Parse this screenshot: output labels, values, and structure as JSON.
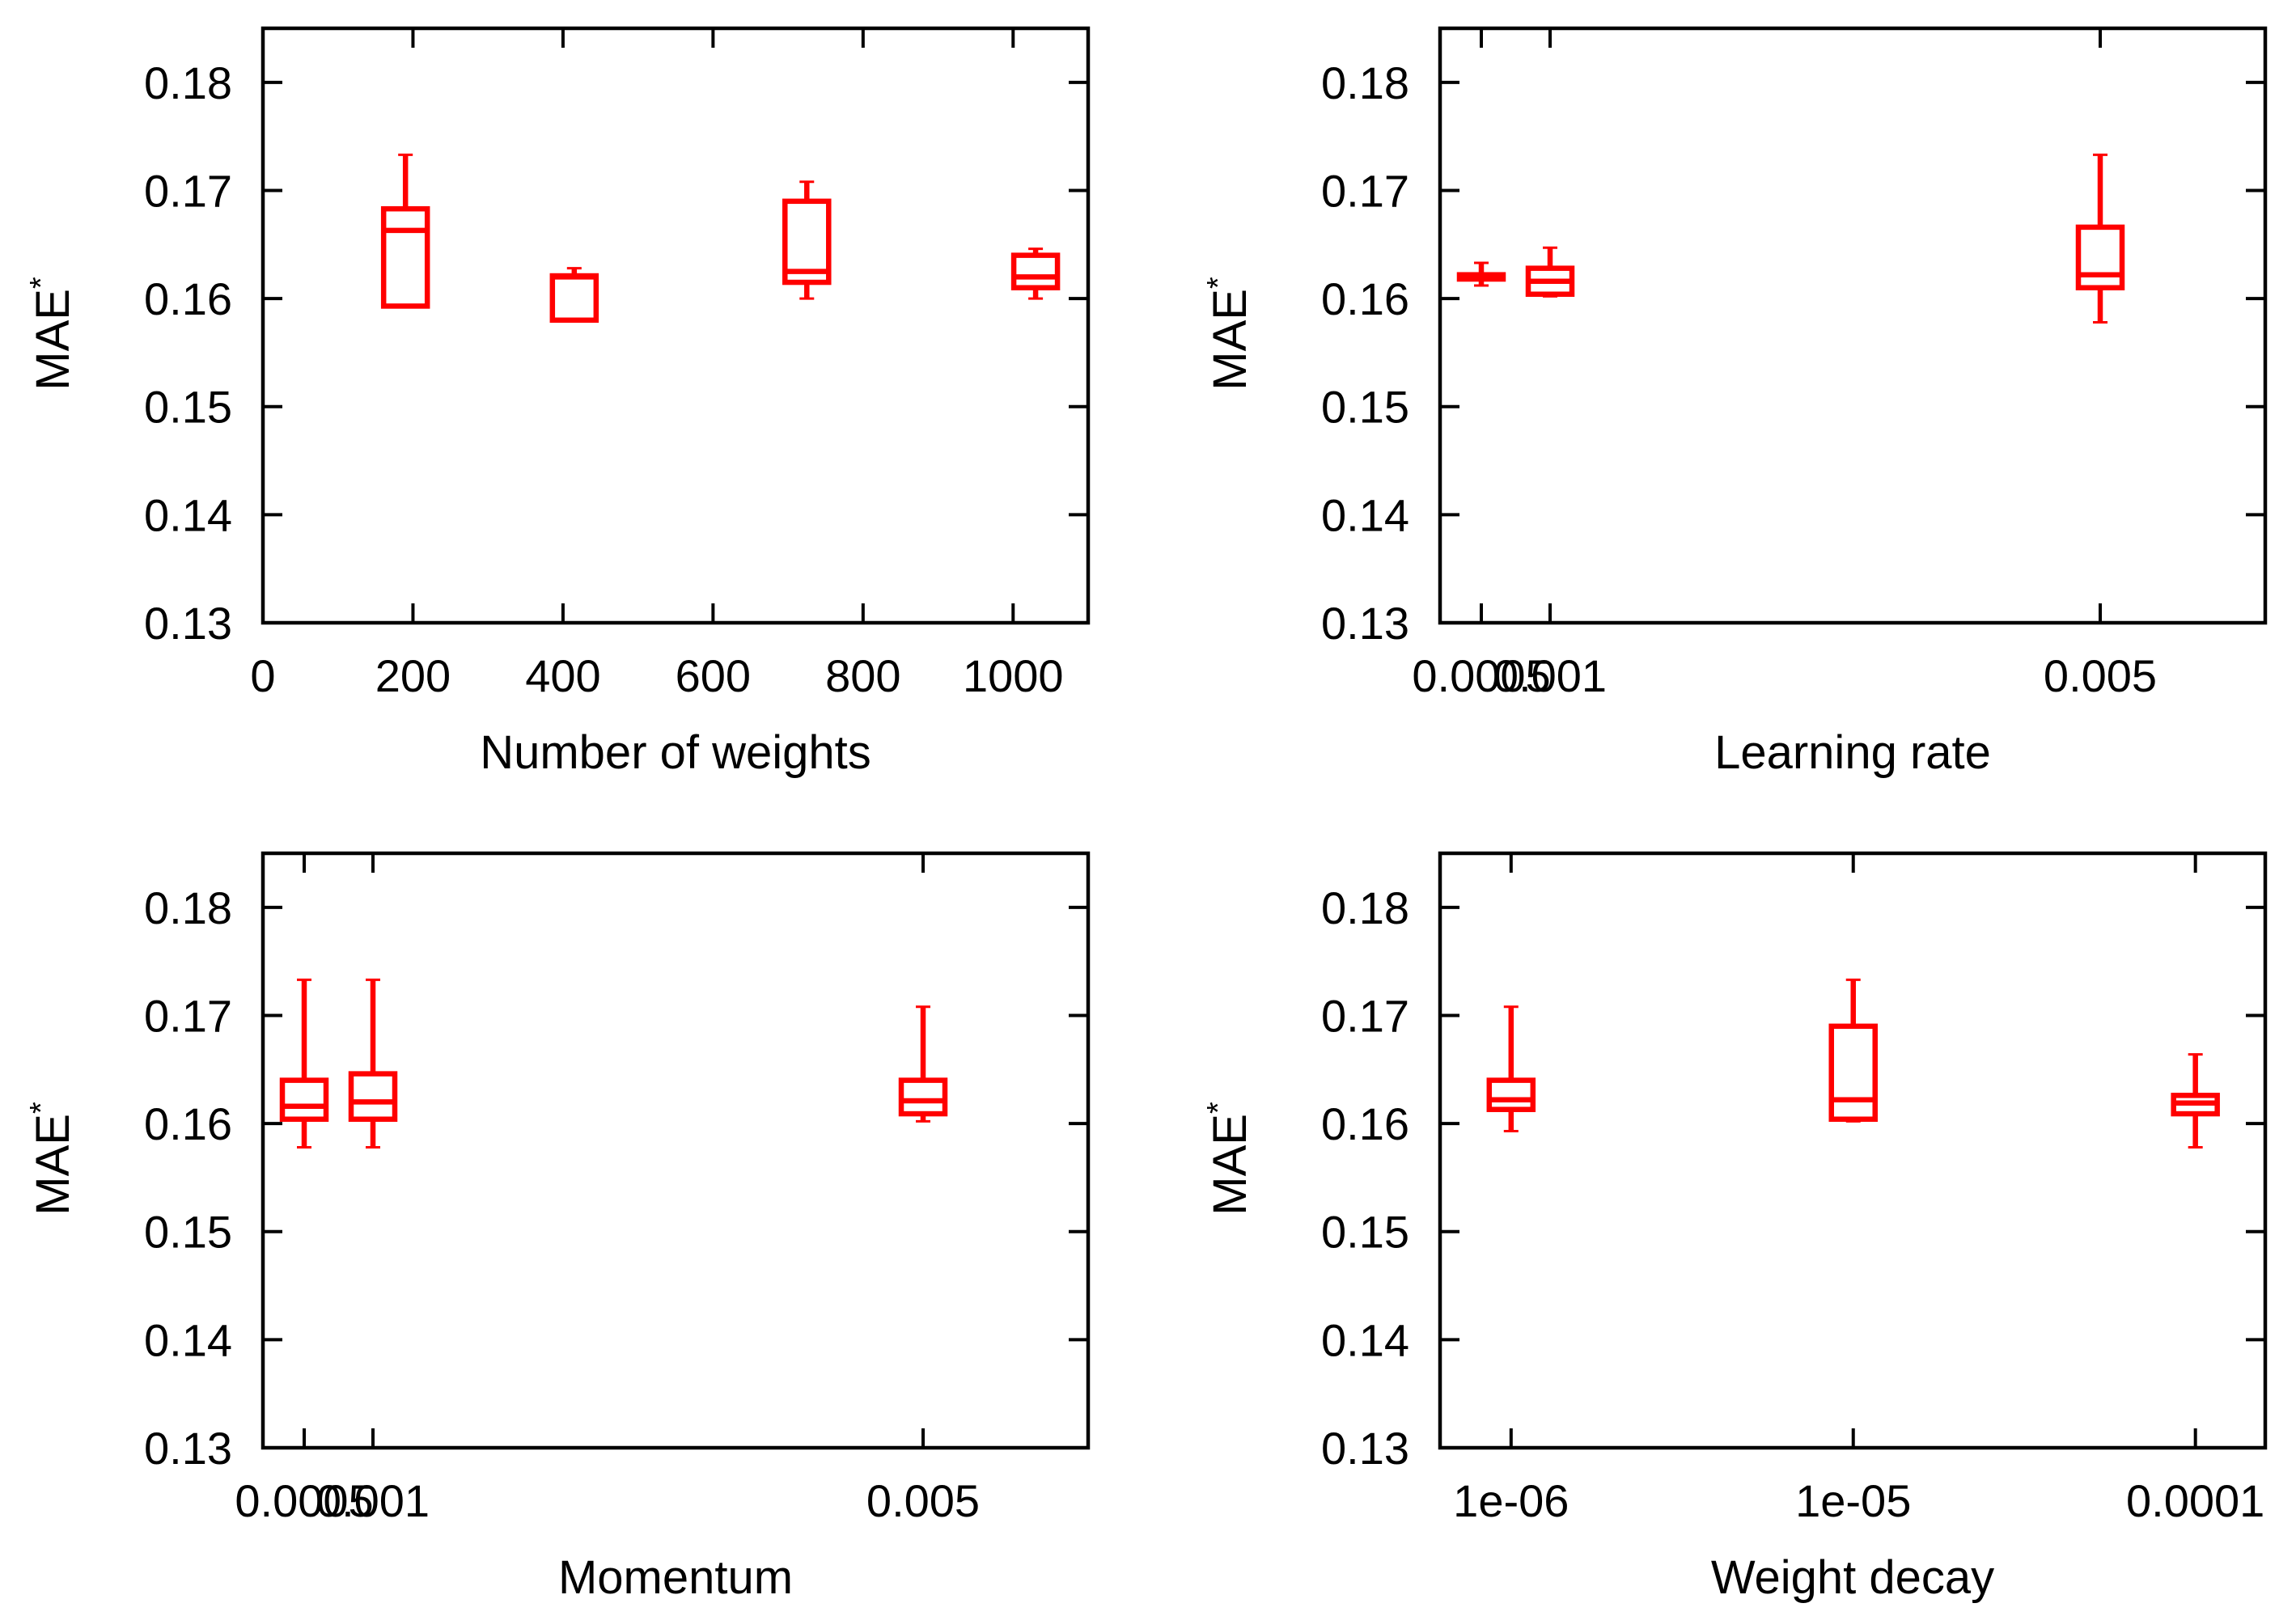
{
  "chart_data": [
    {
      "type": "box",
      "xscale": "linear",
      "xlabel": "Number of weights",
      "ylabel": "MAE",
      "ylabel_superscript": "*",
      "xlim": [
        0,
        1100
      ],
      "ylim": [
        0.13,
        0.185
      ],
      "xticks": [
        0,
        200,
        400,
        600,
        800,
        1000
      ],
      "xtick_labels": [
        "0",
        "200",
        "400",
        "600",
        "800",
        "1000"
      ],
      "yticks": [
        0.13,
        0.14,
        0.15,
        0.16,
        0.17,
        0.18
      ],
      "ytick_labels": [
        "0.13",
        "0.14",
        "0.15",
        "0.16",
        "0.17",
        "0.18"
      ],
      "boxes": [
        {
          "x": 190,
          "min": 0.1593,
          "q1": 0.1593,
          "median": 0.1663,
          "q3": 0.1683,
          "max": 0.1733
        },
        {
          "x": 415,
          "min": 0.158,
          "q1": 0.158,
          "median": 0.162,
          "q3": 0.1621,
          "max": 0.1628
        },
        {
          "x": 725,
          "min": 0.16,
          "q1": 0.1615,
          "median": 0.1625,
          "q3": 0.169,
          "max": 0.1708
        },
        {
          "x": 1030,
          "min": 0.16,
          "q1": 0.161,
          "median": 0.162,
          "q3": 0.164,
          "max": 0.1646
        }
      ]
    },
    {
      "type": "box",
      "xscale": "linear",
      "xlabel": "Learning rate",
      "ylabel": "MAE",
      "ylabel_superscript": "*",
      "xlim": [
        0.0002,
        0.0062
      ],
      "ylim": [
        0.13,
        0.185
      ],
      "xticks": [
        0.0005,
        0.001,
        0.005
      ],
      "xtick_labels": [
        "0.0005",
        "0.001",
        "0.005"
      ],
      "yticks": [
        0.13,
        0.14,
        0.15,
        0.16,
        0.17,
        0.18
      ],
      "ytick_labels": [
        "0.13",
        "0.14",
        "0.15",
        "0.16",
        "0.17",
        "0.18"
      ],
      "boxes": [
        {
          "x": 0.0005,
          "min": 0.1612,
          "q1": 0.1618,
          "median": 0.162,
          "q3": 0.1622,
          "max": 0.1633
        },
        {
          "x": 0.001,
          "min": 0.1602,
          "q1": 0.1604,
          "median": 0.1616,
          "q3": 0.1628,
          "max": 0.1647
        },
        {
          "x": 0.005,
          "min": 0.1578,
          "q1": 0.161,
          "median": 0.1622,
          "q3": 0.1666,
          "max": 0.1733
        }
      ]
    },
    {
      "type": "box",
      "xscale": "linear",
      "xlabel": "Momentum",
      "ylabel": "MAE",
      "ylabel_superscript": "*",
      "xlim": [
        0.0002,
        0.0062
      ],
      "ylim": [
        0.13,
        0.185
      ],
      "xticks": [
        0.0005,
        0.001,
        0.005
      ],
      "xtick_labels": [
        "0.0005",
        "0.001",
        "0.005"
      ],
      "yticks": [
        0.13,
        0.14,
        0.15,
        0.16,
        0.17,
        0.18
      ],
      "ytick_labels": [
        "0.13",
        "0.14",
        "0.15",
        "0.16",
        "0.17",
        "0.18"
      ],
      "boxes": [
        {
          "x": 0.0005,
          "min": 0.1578,
          "q1": 0.1604,
          "median": 0.1616,
          "q3": 0.164,
          "max": 0.1733
        },
        {
          "x": 0.001,
          "min": 0.1578,
          "q1": 0.1604,
          "median": 0.162,
          "q3": 0.1646,
          "max": 0.1733
        },
        {
          "x": 0.005,
          "min": 0.1602,
          "q1": 0.1609,
          "median": 0.1621,
          "q3": 0.164,
          "max": 0.1708
        }
      ]
    },
    {
      "type": "box",
      "xscale": "log",
      "xlabel": "Weight decay",
      "ylabel": "MAE",
      "ylabel_superscript": "*",
      "xlim": [
        6.2e-07,
        0.00016
      ],
      "ylim": [
        0.13,
        0.185
      ],
      "xticks": [
        1e-06,
        1e-05,
        0.0001
      ],
      "xtick_labels": [
        "1e-06",
        "1e-05",
        "0.0001"
      ],
      "yticks": [
        0.13,
        0.14,
        0.15,
        0.16,
        0.17,
        0.18
      ],
      "ytick_labels": [
        "0.13",
        "0.14",
        "0.15",
        "0.16",
        "0.17",
        "0.18"
      ],
      "boxes": [
        {
          "x": 1e-06,
          "min": 0.1593,
          "q1": 0.1613,
          "median": 0.1622,
          "q3": 0.164,
          "max": 0.1708
        },
        {
          "x": 1e-05,
          "min": 0.1602,
          "q1": 0.1604,
          "median": 0.1622,
          "q3": 0.169,
          "max": 0.1733
        },
        {
          "x": 0.0001,
          "min": 0.1578,
          "q1": 0.1609,
          "median": 0.1619,
          "q3": 0.1626,
          "max": 0.1664
        }
      ]
    }
  ],
  "style": {
    "box_color": "#ff0000",
    "axis_color": "#000000",
    "background": "#ffffff"
  }
}
